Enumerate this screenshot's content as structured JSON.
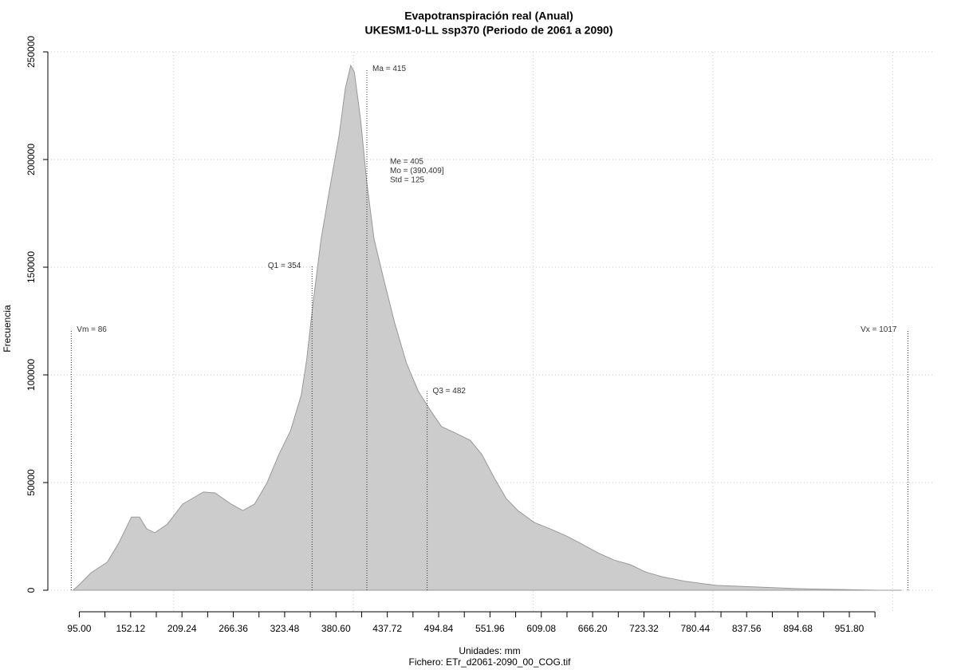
{
  "chart_data": {
    "type": "area",
    "title": "Evapotranspiración real (Anual)",
    "subtitle": "UKESM1-0-LL ssp370 (Periodo de 2061 a 2090)",
    "y_label": "Frecuencia",
    "x_label": "Unidades: mm",
    "caption": "Fichero: ETr_d2061-2090_00_COG.tif",
    "color": "#cccccc",
    "edge_color": "#999999",
    "grid": true,
    "xlim": [
      60,
      1045
    ],
    "ylim": [
      0,
      250000
    ],
    "yticks": [
      0,
      50000,
      100000,
      150000,
      200000,
      250000
    ],
    "xticks": [
      {
        "value": 95,
        "label": "95.00"
      },
      {
        "value": 152.12,
        "label": "152.12"
      },
      {
        "value": 209.24,
        "label": "209.24"
      },
      {
        "value": 266.36,
        "label": "266.36"
      },
      {
        "value": 323.48,
        "label": "323.48"
      },
      {
        "value": 380.6,
        "label": "380.60"
      },
      {
        "value": 437.72,
        "label": "437.72"
      },
      {
        "value": 494.84,
        "label": "494.84"
      },
      {
        "value": 551.96,
        "label": "551.96"
      },
      {
        "value": 609.08,
        "label": "609.08"
      },
      {
        "value": 666.2,
        "label": "666.20"
      },
      {
        "value": 723.32,
        "label": "723.32"
      },
      {
        "value": 780.44,
        "label": "780.44"
      },
      {
        "value": 837.56,
        "label": "837.56"
      },
      {
        "value": 894.68,
        "label": "894.68"
      },
      {
        "value": 951.8,
        "label": "951.80"
      }
    ],
    "xminorticks": [
      123.56,
      180.68,
      237.8,
      294.92,
      352.04,
      409.16,
      466.28,
      523.4,
      580.52,
      637.64,
      694.76,
      751.88,
      809.0,
      866.12,
      923.24,
      980.36
    ],
    "xgrid": [
      200,
      400,
      600,
      800,
      1000
    ],
    "density": {
      "x": [
        88,
        95,
        108,
        126,
        139,
        153,
        162,
        170,
        179,
        193,
        210,
        233,
        246,
        264,
        277,
        290,
        304,
        317,
        330,
        342,
        348,
        355,
        364,
        373,
        384,
        391,
        397,
        401,
        408,
        415,
        423,
        434,
        446,
        459,
        472,
        486,
        498,
        512,
        530,
        543,
        557,
        570,
        583,
        601,
        619,
        637,
        654,
        672,
        690,
        708,
        725,
        743,
        770,
        805,
        850,
        894,
        938,
        983,
        1010
      ],
      "y": [
        0,
        2600,
        8100,
        13000,
        22000,
        34000,
        34000,
        28500,
        26700,
        30700,
        40000,
        45600,
        45200,
        40000,
        37000,
        40000,
        50000,
        63000,
        74000,
        90700,
        107000,
        133000,
        163000,
        185000,
        211000,
        233000,
        243700,
        240700,
        218500,
        189000,
        163000,
        144000,
        124000,
        105500,
        92600,
        83300,
        76000,
        73300,
        69600,
        63000,
        52000,
        42600,
        37000,
        31500,
        28500,
        25200,
        21500,
        17400,
        14000,
        11900,
        8500,
        6300,
        4100,
        2200,
        1500,
        740,
        370,
        0,
        0
      ]
    },
    "annotations": [
      {
        "label": "Vm = 86",
        "value": 86,
        "height": 121000,
        "side": "right"
      },
      {
        "label": "Q1 = 354",
        "value": 354,
        "height": 150700,
        "side": "left"
      },
      {
        "label": "Ma = 415",
        "value": 415,
        "height": 242000,
        "side": "right"
      },
      {
        "label": "Q3 = 482",
        "value": 482,
        "height": 92500,
        "side": "right"
      },
      {
        "label": "Vx = 1017",
        "value": 1017,
        "height": 121000,
        "side": "left"
      }
    ],
    "stats": [
      "Me = 405",
      "Mo = (390,409]",
      "Std = 125"
    ]
  }
}
